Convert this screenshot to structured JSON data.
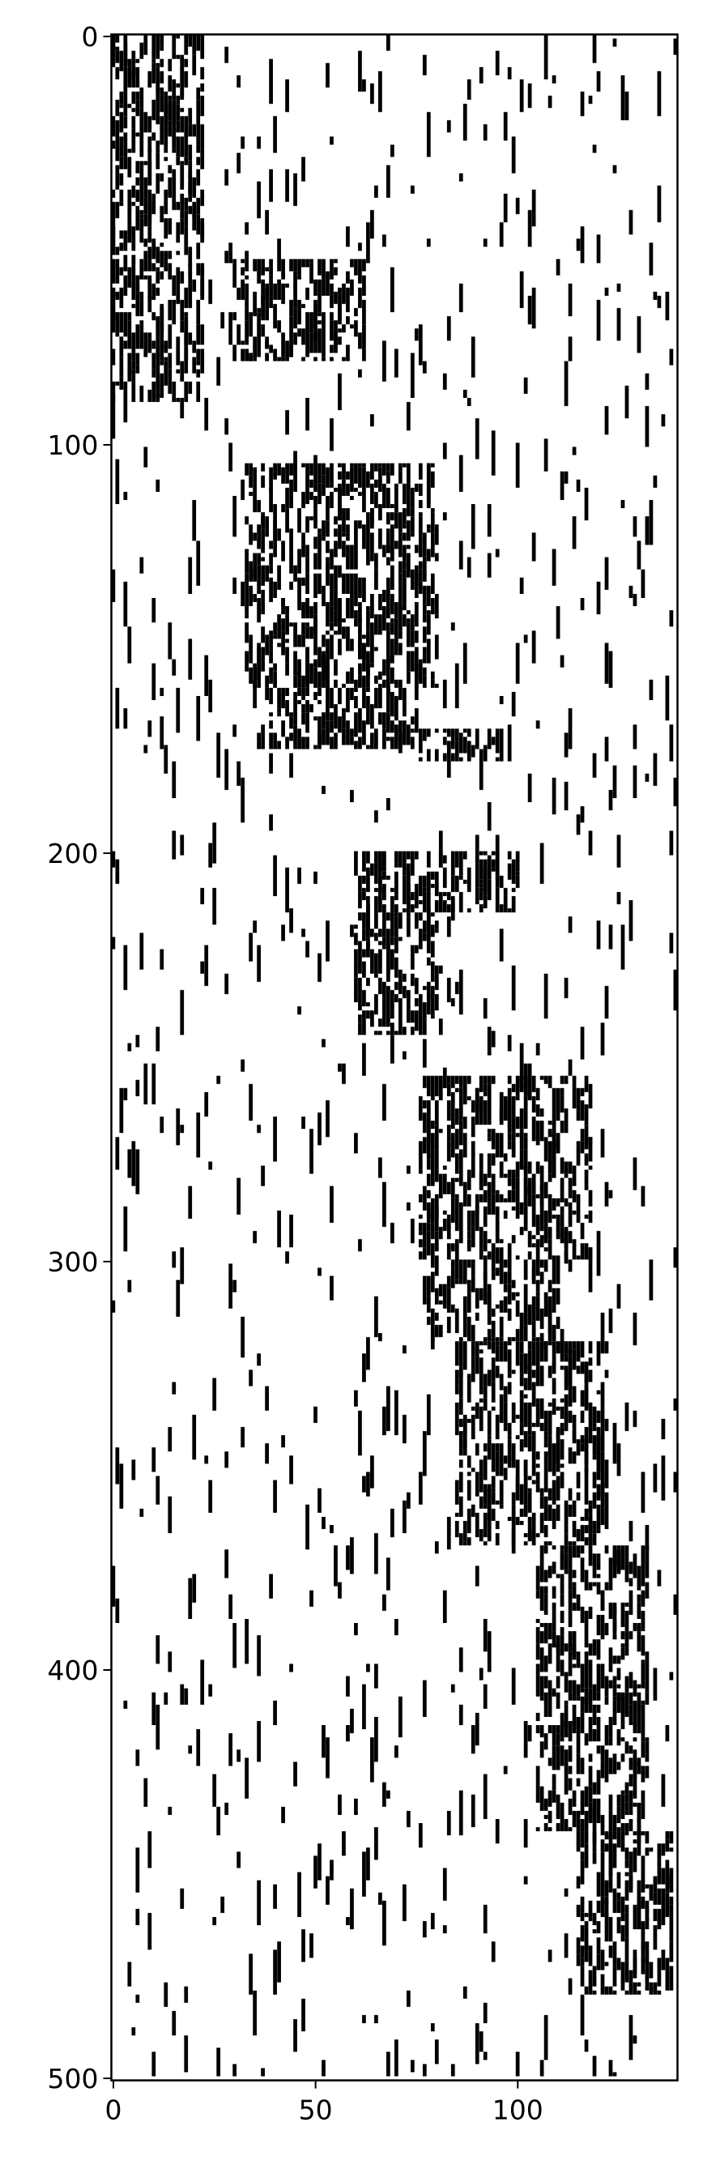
{
  "chart_data": {
    "type": "heatmap",
    "colormap": [
      "#ffffff",
      "#000000"
    ],
    "values_description_binary": true,
    "xlim": [
      -0.5,
      139.5
    ],
    "ylim": [
      500.5,
      -0.5
    ],
    "y_inverted": true,
    "xticks": [
      0,
      50,
      100
    ],
    "xtick_labels": [
      "0",
      "50",
      "100"
    ],
    "yticks": [
      0,
      100,
      200,
      300,
      400,
      500
    ],
    "ytick_labels": [
      "0",
      "100",
      "200",
      "300",
      "400",
      "500"
    ],
    "grid": false,
    "legend": "none",
    "dense_blocks": [
      {
        "x": [
          0,
          22
        ],
        "y": [
          0,
          90
        ]
      },
      {
        "x": [
          30,
          62
        ],
        "y": [
          55,
          80
        ]
      },
      {
        "x": [
          33,
          80
        ],
        "y": [
          105,
          160
        ]
      },
      {
        "x": [
          36,
          75
        ],
        "y": [
          160,
          175
        ]
      },
      {
        "x": [
          76,
          96
        ],
        "y": [
          170,
          178
        ]
      },
      {
        "x": [
          60,
          100
        ],
        "y": [
          200,
          215
        ]
      },
      {
        "x": [
          60,
          80
        ],
        "y": [
          215,
          245
        ]
      },
      {
        "x": [
          76,
          118
        ],
        "y": [
          255,
          300
        ]
      },
      {
        "x": [
          78,
          110
        ],
        "y": [
          300,
          320
        ]
      },
      {
        "x": [
          85,
          122
        ],
        "y": [
          320,
          370
        ]
      },
      {
        "x": [
          105,
          132
        ],
        "y": [
          370,
          440
        ]
      },
      {
        "x": [
          115,
          138
        ],
        "y": [
          440,
          480
        ]
      }
    ]
  }
}
